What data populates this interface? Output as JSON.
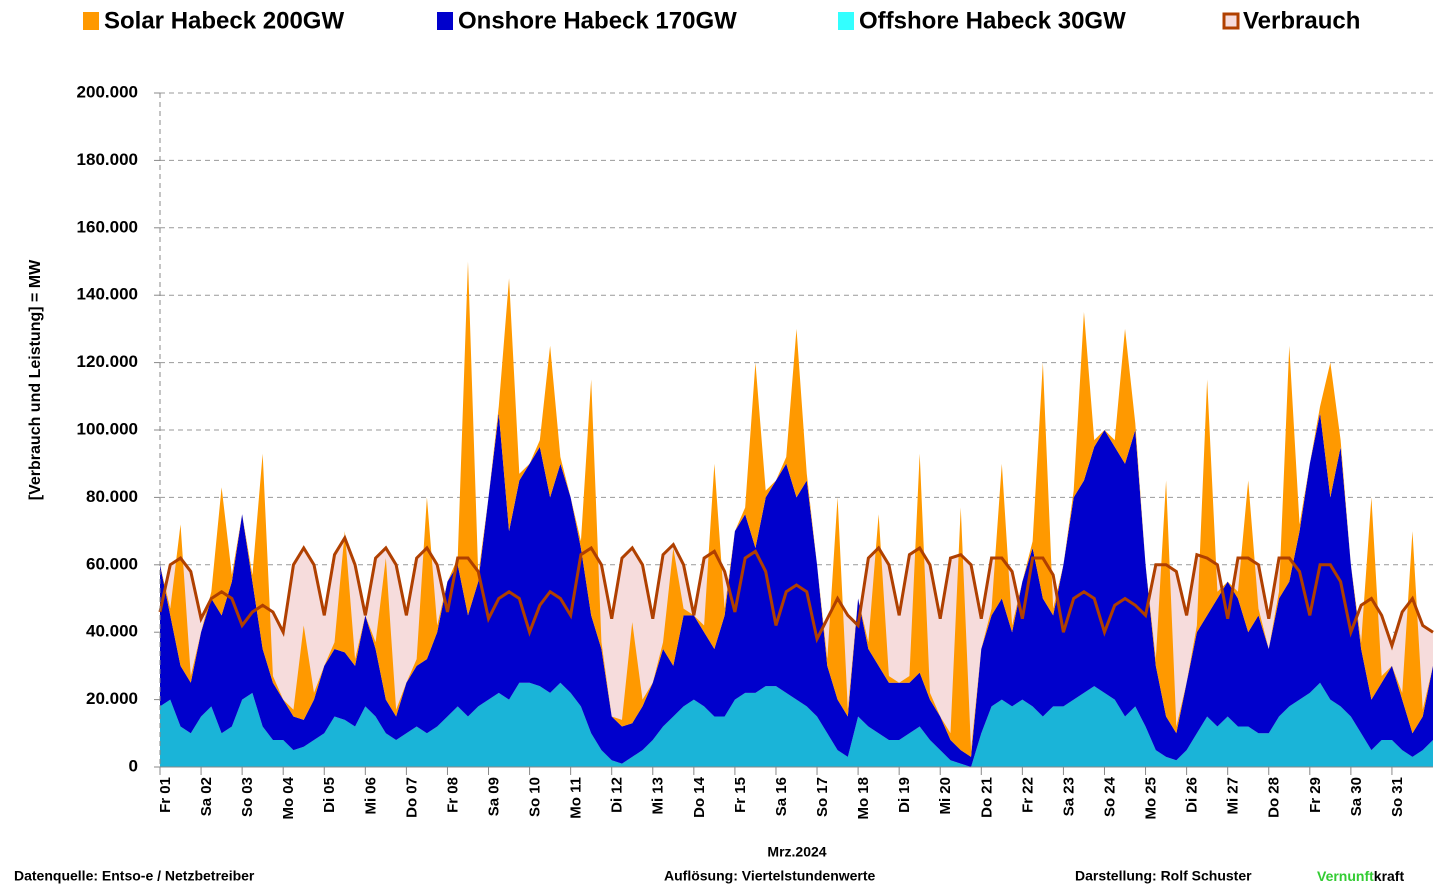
{
  "chart_data": {
    "type": "stacked_area",
    "ylabel": "[Verbrauch und Leistung] =  MW",
    "xlabel": "Mrz.2024",
    "footer": {
      "source": "Datenquelle: Entso-e  / Netzbetreiber",
      "resolution": "Auflösung: Viertelstundenwerte",
      "author": "Darstellung:  Rolf Schuster",
      "brand_green": "Vernunft",
      "brand_black": "kraft"
    },
    "xlim": [
      0,
      31
    ],
    "ylim": [
      0,
      200000
    ],
    "grid": true,
    "yticks": [
      0,
      {
        "value": 20000,
        "label": "20.000"
      },
      {
        "value": 40000,
        "label": "40.000"
      },
      {
        "value": 60000,
        "label": "60.000"
      },
      {
        "value": 80000,
        "label": "80.000"
      },
      {
        "value": 100000,
        "label": "100.000"
      },
      {
        "value": 120000,
        "label": "120.000"
      },
      {
        "value": 140000,
        "label": "140.000"
      },
      {
        "value": 160000,
        "label": "160.000"
      },
      {
        "value": 180000,
        "label": "180.000"
      },
      {
        "value": 200000,
        "label": "200.000"
      }
    ],
    "xticks": [
      {
        "value": 0,
        "label": "Fr 01"
      },
      {
        "value": 1,
        "label": "Sa 02"
      },
      {
        "value": 2,
        "label": "So 03"
      },
      {
        "value": 3,
        "label": "Mo 04"
      },
      {
        "value": 4,
        "label": "Di 05"
      },
      {
        "value": 5,
        "label": "Mi 06"
      },
      {
        "value": 6,
        "label": "Do 07"
      },
      {
        "value": 7,
        "label": "Fr 08"
      },
      {
        "value": 8,
        "label": "Sa 09"
      },
      {
        "value": 9,
        "label": "So 10"
      },
      {
        "value": 10,
        "label": "Mo 11"
      },
      {
        "value": 11,
        "label": "Di 12"
      },
      {
        "value": 12,
        "label": "Mi 13"
      },
      {
        "value": 13,
        "label": "Do 14"
      },
      {
        "value": 14,
        "label": "Fr 15"
      },
      {
        "value": 15,
        "label": "Sa 16"
      },
      {
        "value": 16,
        "label": "So 17"
      },
      {
        "value": 17,
        "label": "Mo 18"
      },
      {
        "value": 18,
        "label": "Di 19"
      },
      {
        "value": 19,
        "label": "Mi 20"
      },
      {
        "value": 20,
        "label": "Do 21"
      },
      {
        "value": 21,
        "label": "Fr 22"
      },
      {
        "value": 22,
        "label": "Sa 23"
      },
      {
        "value": 23,
        "label": "So 24"
      },
      {
        "value": 24,
        "label": "Mo 25"
      },
      {
        "value": 25,
        "label": "Di 26"
      },
      {
        "value": 26,
        "label": "Mi 27"
      },
      {
        "value": 27,
        "label": "Do 28"
      },
      {
        "value": 28,
        "label": "Fr 29"
      },
      {
        "value": 29,
        "label": "Sa 30"
      },
      {
        "value": 30,
        "label": "So 31"
      }
    ],
    "x": [
      0,
      0.25,
      0.5,
      0.75,
      1,
      1.25,
      1.5,
      1.75,
      2,
      2.25,
      2.5,
      2.75,
      3,
      3.25,
      3.5,
      3.75,
      4,
      4.25,
      4.5,
      4.75,
      5,
      5.25,
      5.5,
      5.75,
      6,
      6.25,
      6.5,
      6.75,
      7,
      7.25,
      7.5,
      7.75,
      8,
      8.25,
      8.5,
      8.75,
      9,
      9.25,
      9.5,
      9.75,
      10,
      10.25,
      10.5,
      10.75,
      11,
      11.25,
      11.5,
      11.75,
      12,
      12.25,
      12.5,
      12.75,
      13,
      13.25,
      13.5,
      13.75,
      14,
      14.25,
      14.5,
      14.75,
      15,
      15.25,
      15.5,
      15.75,
      16,
      16.25,
      16.5,
      16.75,
      17,
      17.25,
      17.5,
      17.75,
      18,
      18.25,
      18.5,
      18.75,
      19,
      19.25,
      19.5,
      19.75,
      20,
      20.25,
      20.5,
      20.75,
      21,
      21.25,
      21.5,
      21.75,
      22,
      22.25,
      22.5,
      22.75,
      23,
      23.25,
      23.5,
      23.75,
      24,
      24.25,
      24.5,
      24.75,
      25,
      25.25,
      25.5,
      25.75,
      26,
      26.25,
      26.5,
      26.75,
      27,
      27.25,
      27.5,
      27.75,
      28,
      28.25,
      28.5,
      28.75,
      29,
      29.25,
      29.5,
      29.75,
      30,
      30.25,
      30.5,
      30.75,
      31
    ],
    "series": [
      {
        "name": "Offshore Habeck 30GW",
        "color": "#1ab4d8",
        "legend_color": "#33ffff",
        "values": [
          18000,
          20000,
          12000,
          10000,
          15000,
          18000,
          10000,
          12000,
          20000,
          22000,
          12000,
          8000,
          8000,
          5000,
          6000,
          8000,
          10000,
          15000,
          14000,
          12000,
          18000,
          15000,
          10000,
          8000,
          10000,
          12000,
          10000,
          12000,
          15000,
          18000,
          15000,
          18000,
          20000,
          22000,
          20000,
          25000,
          25000,
          24000,
          22000,
          25000,
          22000,
          18000,
          10000,
          5000,
          2000,
          1000,
          3000,
          5000,
          8000,
          12000,
          15000,
          18000,
          20000,
          18000,
          15000,
          15000,
          20000,
          22000,
          22000,
          24000,
          24000,
          22000,
          20000,
          18000,
          15000,
          10000,
          5000,
          3000,
          15000,
          12000,
          10000,
          8000,
          8000,
          10000,
          12000,
          8000,
          5000,
          2000,
          1000,
          0,
          10000,
          18000,
          20000,
          18000,
          20000,
          18000,
          15000,
          18000,
          18000,
          20000,
          22000,
          24000,
          22000,
          20000,
          15000,
          18000,
          12000,
          5000,
          3000,
          2000,
          5000,
          10000,
          15000,
          12000,
          15000,
          12000,
          12000,
          10000,
          10000,
          15000,
          18000,
          20000,
          22000,
          25000,
          20000,
          18000,
          15000,
          10000,
          5000,
          8000,
          8000,
          5000,
          3000,
          5000,
          8000
        ]
      },
      {
        "name": "Onshore Habeck 170GW",
        "color": "#0000cc",
        "values": [
          42000,
          25000,
          18000,
          15000,
          25000,
          32000,
          35000,
          43000,
          55000,
          33000,
          23000,
          17000,
          12000,
          10000,
          8000,
          12000,
          20000,
          20000,
          20000,
          18000,
          27000,
          20000,
          10000,
          7000,
          15000,
          18000,
          22000,
          28000,
          40000,
          42000,
          30000,
          37000,
          60000,
          83000,
          50000,
          60000,
          65000,
          71000,
          58000,
          65000,
          58000,
          47000,
          35000,
          30000,
          13000,
          11000,
          10000,
          13000,
          17000,
          23000,
          15000,
          27000,
          25000,
          22000,
          20000,
          30000,
          50000,
          53000,
          43000,
          56000,
          61000,
          68000,
          60000,
          67000,
          45000,
          20000,
          15000,
          12000,
          35000,
          23000,
          20000,
          17000,
          17000,
          15000,
          16000,
          12000,
          10000,
          6000,
          4000,
          3000,
          25000,
          27000,
          30000,
          22000,
          35000,
          47000,
          35000,
          27000,
          42000,
          60000,
          63000,
          71000,
          78000,
          75000,
          75000,
          82000,
          48000,
          25000,
          12000,
          8000,
          20000,
          30000,
          30000,
          38000,
          40000,
          38000,
          28000,
          35000,
          25000,
          35000,
          37000,
          50000,
          68000,
          80000,
          60000,
          77000,
          45000,
          25000,
          15000,
          17000,
          22000,
          15000,
          7000,
          10000,
          22000
        ]
      },
      {
        "name": "Solar Habeck 200GW",
        "color": "#ff9900",
        "values": [
          0,
          2000,
          42000,
          2000,
          0,
          2000,
          38000,
          2000,
          0,
          2000,
          58000,
          2000,
          0,
          2000,
          28000,
          2000,
          0,
          2000,
          36000,
          2000,
          0,
          2000,
          42000,
          2000,
          0,
          2000,
          48000,
          2000,
          0,
          2000,
          105000,
          2000,
          0,
          2000,
          75000,
          2000,
          0,
          2000,
          45000,
          2000,
          0,
          2000,
          70000,
          2000,
          0,
          2000,
          30000,
          2000,
          0,
          2000,
          35000,
          2000,
          0,
          2000,
          55000,
          2000,
          0,
          2000,
          55000,
          2000,
          0,
          2000,
          50000,
          2000,
          0,
          2000,
          60000,
          2000,
          0,
          2000,
          45000,
          2000,
          0,
          2000,
          65000,
          2000,
          0,
          2000,
          72000,
          2000,
          0,
          2000,
          40000,
          2000,
          0,
          2000,
          70000,
          2000,
          0,
          2000,
          50000,
          2000,
          0,
          2000,
          40000,
          2000,
          0,
          2000,
          70000,
          2000,
          0,
          2000,
          70000,
          2000,
          0,
          2000,
          45000,
          2000,
          0,
          2000,
          70000,
          2000,
          0,
          2000,
          40000,
          2000,
          0,
          2000,
          60000,
          2000,
          0,
          2000,
          60000,
          2000,
          0
        ]
      },
      {
        "name": "Verbrauch",
        "type": "line",
        "color": "#b04000",
        "fill_color": "#f6dcdc",
        "values": [
          46000,
          60000,
          62000,
          58000,
          44000,
          50000,
          52000,
          50000,
          42000,
          46000,
          48000,
          46000,
          40000,
          60000,
          65000,
          60000,
          45000,
          63000,
          68000,
          60000,
          45000,
          62000,
          65000,
          60000,
          45000,
          62000,
          65000,
          60000,
          46000,
          62000,
          62000,
          58000,
          44000,
          50000,
          52000,
          50000,
          40000,
          48000,
          52000,
          50000,
          45000,
          63000,
          65000,
          60000,
          44000,
          62000,
          65000,
          60000,
          44000,
          63000,
          66000,
          60000,
          45000,
          62000,
          64000,
          58000,
          46000,
          62000,
          64000,
          58000,
          42000,
          52000,
          54000,
          52000,
          38000,
          44000,
          50000,
          45000,
          42000,
          62000,
          65000,
          60000,
          45000,
          63000,
          65000,
          60000,
          44000,
          62000,
          63000,
          60000,
          44000,
          62000,
          62000,
          58000,
          44000,
          62000,
          62000,
          57000,
          40000,
          50000,
          52000,
          50000,
          40000,
          48000,
          50000,
          48000,
          45000,
          60000,
          60000,
          58000,
          45000,
          63000,
          62000,
          60000,
          44000,
          62000,
          62000,
          60000,
          44000,
          62000,
          62000,
          58000,
          45000,
          60000,
          60000,
          55000,
          40000,
          48000,
          50000,
          45000,
          36000,
          46000,
          50000,
          42000,
          40000
        ]
      }
    ]
  }
}
